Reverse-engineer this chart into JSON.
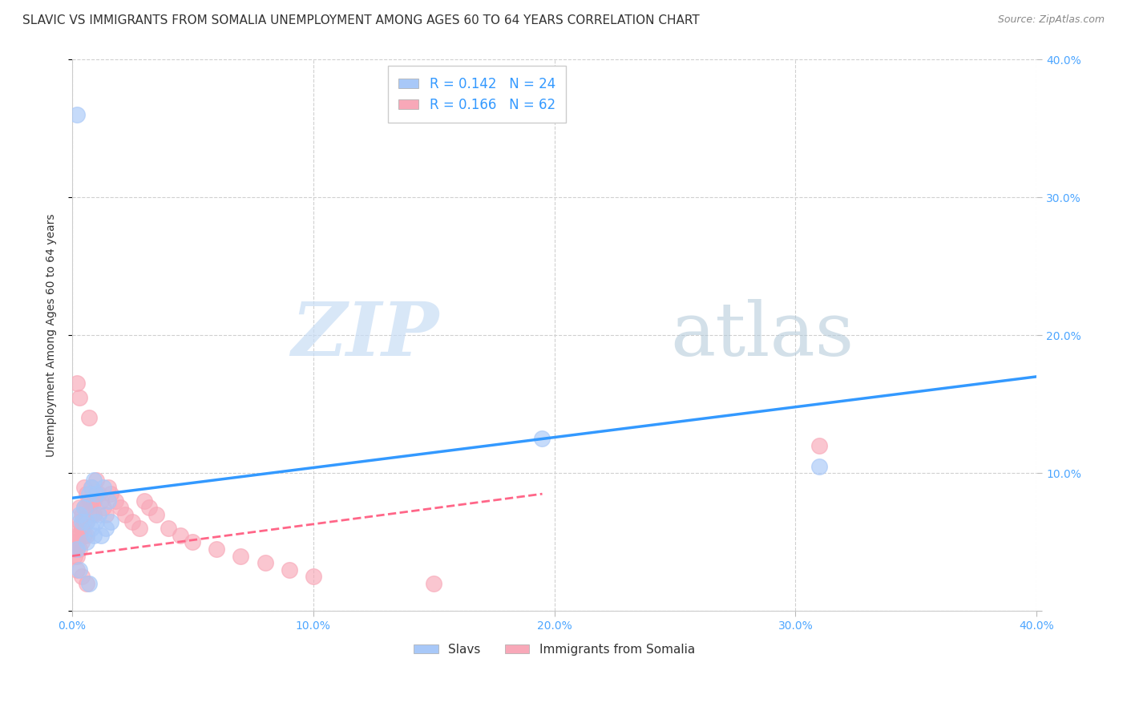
{
  "title": "SLAVIC VS IMMIGRANTS FROM SOMALIA UNEMPLOYMENT AMONG AGES 60 TO 64 YEARS CORRELATION CHART",
  "source": "Source: ZipAtlas.com",
  "ylabel": "Unemployment Among Ages 60 to 64 years",
  "xlim": [
    0.0,
    0.4
  ],
  "ylim": [
    0.0,
    0.4
  ],
  "xticks": [
    0.0,
    0.1,
    0.2,
    0.3,
    0.4
  ],
  "yticks": [
    0.0,
    0.1,
    0.2,
    0.3,
    0.4
  ],
  "xtick_labels": [
    "0.0%",
    "10.0%",
    "20.0%",
    "30.0%",
    "40.0%"
  ],
  "ytick_labels": [
    "",
    "10.0%",
    "20.0%",
    "30.0%",
    "40.0%"
  ],
  "legend_r1": "0.142",
  "legend_n1": "24",
  "legend_r2": "0.166",
  "legend_n2": "62",
  "slavs_color": "#a8c8f8",
  "somalia_color": "#f8a8b8",
  "slavs_label": "Slavs",
  "somalia_label": "Immigrants from Somalia",
  "slavs_x": [
    0.002,
    0.003,
    0.004,
    0.005,
    0.006,
    0.007,
    0.008,
    0.008,
    0.009,
    0.009,
    0.01,
    0.01,
    0.011,
    0.012,
    0.013,
    0.014,
    0.015,
    0.016,
    0.003,
    0.006,
    0.007,
    0.195,
    0.31,
    0.002
  ],
  "slavs_y": [
    0.36,
    0.07,
    0.065,
    0.075,
    0.065,
    0.085,
    0.06,
    0.09,
    0.055,
    0.095,
    0.065,
    0.085,
    0.07,
    0.055,
    0.09,
    0.06,
    0.08,
    0.065,
    0.03,
    0.05,
    0.02,
    0.125,
    0.105,
    0.045
  ],
  "somalia_x": [
    0.001,
    0.001,
    0.001,
    0.002,
    0.002,
    0.002,
    0.002,
    0.002,
    0.002,
    0.003,
    0.003,
    0.003,
    0.003,
    0.003,
    0.004,
    0.004,
    0.004,
    0.005,
    0.005,
    0.005,
    0.005,
    0.006,
    0.006,
    0.006,
    0.006,
    0.007,
    0.007,
    0.007,
    0.008,
    0.008,
    0.008,
    0.009,
    0.009,
    0.01,
    0.01,
    0.011,
    0.012,
    0.013,
    0.014,
    0.015,
    0.016,
    0.018,
    0.02,
    0.022,
    0.025,
    0.028,
    0.03,
    0.032,
    0.035,
    0.04,
    0.045,
    0.05,
    0.06,
    0.07,
    0.08,
    0.09,
    0.1,
    0.15,
    0.002,
    0.004,
    0.006,
    0.31
  ],
  "somalia_y": [
    0.05,
    0.045,
    0.04,
    0.165,
    0.06,
    0.055,
    0.05,
    0.045,
    0.04,
    0.155,
    0.075,
    0.065,
    0.055,
    0.045,
    0.07,
    0.06,
    0.05,
    0.09,
    0.075,
    0.065,
    0.055,
    0.085,
    0.075,
    0.065,
    0.055,
    0.14,
    0.08,
    0.07,
    0.09,
    0.08,
    0.07,
    0.08,
    0.07,
    0.095,
    0.085,
    0.085,
    0.08,
    0.075,
    0.07,
    0.09,
    0.085,
    0.08,
    0.075,
    0.07,
    0.065,
    0.06,
    0.08,
    0.075,
    0.07,
    0.06,
    0.055,
    0.05,
    0.045,
    0.04,
    0.035,
    0.03,
    0.025,
    0.02,
    0.03,
    0.025,
    0.02,
    0.12
  ],
  "blue_trend_x": [
    0.0,
    0.4
  ],
  "blue_trend_y": [
    0.082,
    0.17
  ],
  "pink_trend_x": [
    0.0,
    0.195
  ],
  "pink_trend_y": [
    0.04,
    0.085
  ],
  "watermark_zip": "ZIP",
  "watermark_atlas": "atlas",
  "background_color": "#ffffff",
  "grid_color": "#d0d0d0",
  "tick_color": "#4da6ff",
  "title_color": "#333333",
  "title_fontsize": 11,
  "axis_label_fontsize": 10,
  "tick_fontsize": 10
}
